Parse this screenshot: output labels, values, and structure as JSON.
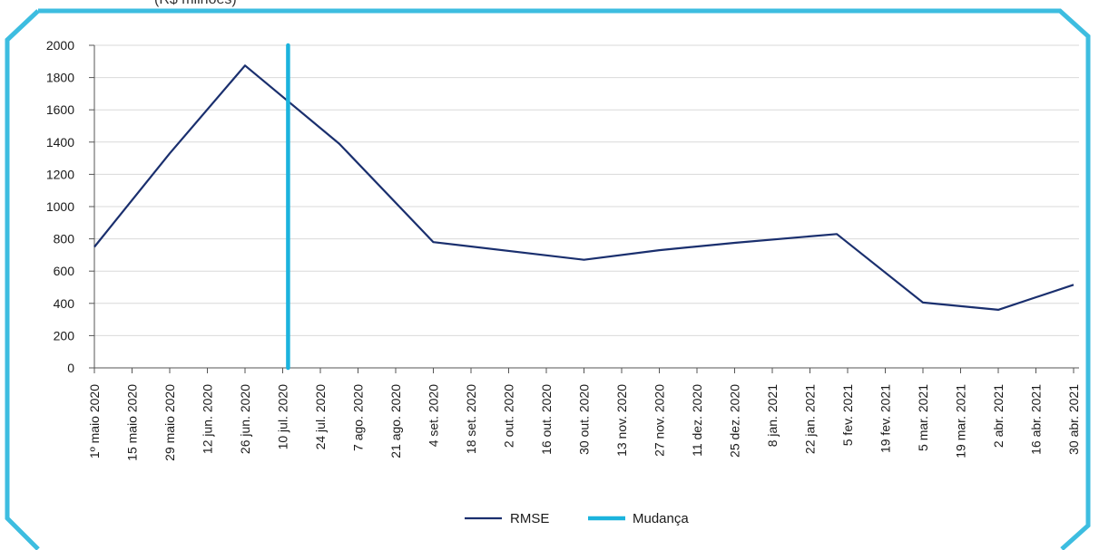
{
  "header": {
    "partial_title": "(R$ milhões)"
  },
  "colors": {
    "frame": "#3dbde0",
    "rmse": "#1a2f6e",
    "mudanca": "#1bb3dd",
    "grid": "#d9d9d9",
    "axis": "#555555"
  },
  "chart_data": {
    "type": "line",
    "title": "",
    "xlabel": "",
    "ylabel": "",
    "ylim": [
      0,
      2000
    ],
    "yticks": [
      0,
      200,
      400,
      600,
      800,
      1000,
      1200,
      1400,
      1600,
      1800,
      2000
    ],
    "grid": true,
    "legend_position": "bottom-center",
    "categories": [
      "1º maio 2020",
      "15 maio 2020",
      "29 maio 2020",
      "12 jun. 2020",
      "26 jun. 2020",
      "10 jul. 2020",
      "24 jul. 2020",
      "7 ago. 2020",
      "21 ago. 2020",
      "4 set. 2020",
      "18 set. 2020",
      "2 out. 2020",
      "16 out. 2020",
      "30 out. 2020",
      "13 nov. 2020",
      "27 nov. 2020",
      "11 dez. 2020",
      "25 dez. 2020",
      "8 jan. 2021",
      "22 jan. 2021",
      "5 fev. 2021",
      "19 fev. 2021",
      "5 mar. 2021",
      "19 mar. 2021",
      "2 abr. 2021",
      "16 abr. 2021",
      "30 abr. 2021"
    ],
    "series": [
      {
        "name": "RMSE",
        "points": [
          {
            "x": "1º maio 2020",
            "y": 750
          },
          {
            "x": "29 maio 2020",
            "y": 1330
          },
          {
            "x": "26 jun. 2020",
            "y": 1875
          },
          {
            "x": "31 jul. 2020",
            "y": 1390
          },
          {
            "x": "4 set. 2020",
            "y": 780
          },
          {
            "x": "30 out. 2020",
            "y": 670
          },
          {
            "x": "27 nov. 2020",
            "y": 730
          },
          {
            "x": "25 dez. 2020",
            "y": 775
          },
          {
            "x": "1 fev. 2021",
            "y": 830
          },
          {
            "x": "5 mar. 2021",
            "y": 405
          },
          {
            "x": "2 abr. 2021",
            "y": 360
          },
          {
            "x": "30 abr. 2021",
            "y": 515
          }
        ]
      },
      {
        "name": "Mudança",
        "vertical_at": "12 jul. 2020"
      }
    ]
  }
}
